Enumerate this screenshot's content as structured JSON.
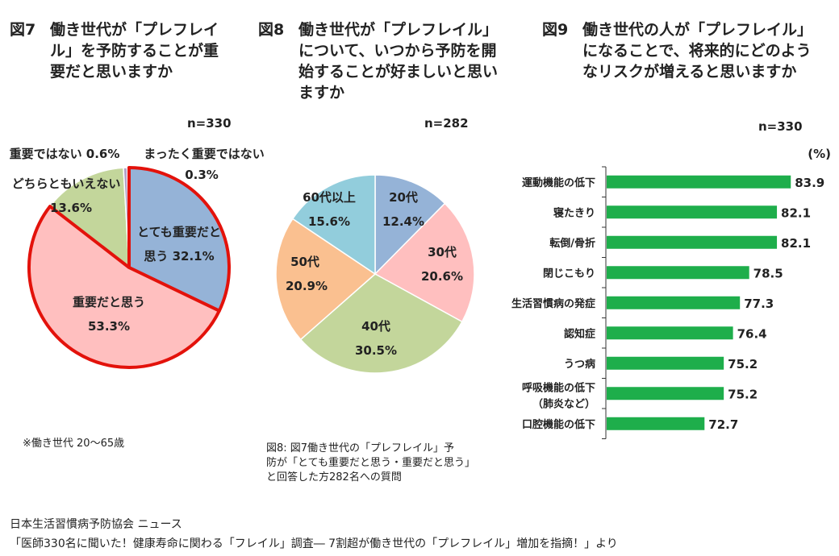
{
  "chart_data": [
    {
      "type": "pie",
      "fig": "図7",
      "title": "働き世代が「プレフレイル」を予防することが重要だと思いますか",
      "n": "n=330",
      "slices": [
        {
          "label": "とても重要だと思う",
          "value": 32.1,
          "color": "#95b3d7",
          "text": "とても重要だと",
          "text2": "思う 32.1%"
        },
        {
          "label": "重要だと思う",
          "value": 53.3,
          "color": "#ffbfbf",
          "text": "重要だと思う",
          "text2": "53.3%"
        },
        {
          "label": "どちらともいえない",
          "value": 13.6,
          "color": "#c3d69b",
          "text": "どちらともいえない",
          "text2": "13.6%"
        },
        {
          "label": "重要ではない",
          "value": 0.6,
          "color": "#b3a2c7",
          "text": "重要ではない 0.6%",
          "text2": ""
        },
        {
          "label": "まったく重要ではない",
          "value": 0.3,
          "color": "#f79646",
          "text": "まったく重要ではない",
          "text2": "0.3%"
        }
      ],
      "highlight_color": "#e3120b"
    },
    {
      "type": "pie",
      "fig": "図8",
      "title": "働き世代が「プレフレイル」について、いつから予防を開始することが好ましいと思いますか",
      "n": "n=282",
      "slices": [
        {
          "label": "20代",
          "value": 12.4,
          "color": "#95b3d7",
          "text": "20代",
          "text2": "12.4%"
        },
        {
          "label": "30代",
          "value": 20.6,
          "color": "#ffbfbf",
          "text": "30代",
          "text2": "20.6%"
        },
        {
          "label": "40代",
          "value": 30.5,
          "color": "#c3d69b",
          "text": "40代",
          "text2": "30.5%"
        },
        {
          "label": "50代",
          "value": 20.9,
          "color": "#fac090",
          "text": "50代",
          "text2": "20.9%"
        },
        {
          "label": "60代以上",
          "value": 15.6,
          "color": "#92cddc",
          "text": "60代以上",
          "text2": "15.6%"
        }
      ]
    },
    {
      "type": "bar",
      "orientation": "horizontal",
      "fig": "図9",
      "title": "働き世代の人が「プレフレイル」になることで、将来的にどのようなリスクが増えると思いますか",
      "n": "n=330",
      "unit": "(%)",
      "xlim": [
        60,
        90
      ],
      "color": "#1eae4b",
      "categories": [
        "運動機能の低下",
        "寝たきり",
        "転倒/骨折",
        "閉じこもり",
        "生活習慣病の発症",
        "認知症",
        "うつ病",
        "呼吸機能の低下（肺炎など）",
        "口腔機能の低下"
      ],
      "category_lines": [
        [
          "運動機能の低下"
        ],
        [
          "寝たきり"
        ],
        [
          "転倒/骨折"
        ],
        [
          "閉じこもり"
        ],
        [
          "生活習慣病の発症"
        ],
        [
          "認知症"
        ],
        [
          "うつ病"
        ],
        [
          "呼吸機能の低下",
          "（肺炎など）"
        ],
        [
          "口腔機能の低下"
        ]
      ],
      "values": [
        83.9,
        82.1,
        82.1,
        78.5,
        77.3,
        76.4,
        75.2,
        75.2,
        72.7
      ]
    }
  ],
  "titles": {
    "fig7": {
      "num": "図7",
      "lines": [
        "働き世代が「プレフレイ",
        "ル」を予防することが重",
        "要だと思いますか"
      ]
    },
    "fig8": {
      "num": "図8",
      "lines": [
        "働き世代が「プレフレイル」",
        "について、いつから予防を開",
        "始することが好ましいと思い",
        "ますか"
      ]
    },
    "fig9": {
      "num": "図9",
      "lines": [
        "働き世代の人が「プレフレイル」",
        "になることで、将来的にどのよう",
        "なリスクが増えると思いますか"
      ]
    }
  },
  "notes": {
    "working_age": "※働き世代 20～65歳",
    "fig8_note": [
      "図8: 図7働き世代の「プレフレイル」予",
      "防が「とても重要だと思う・重要だと思う」",
      "と回答した方282名への質問"
    ],
    "source1": "日本生活習慣病予防協会 ニュース",
    "source2": "「医師330名に聞いた！健康寿命に関わる「フレイル」調査― 7割超が働き世代の「プレフレイル」増加を指摘！」より"
  }
}
